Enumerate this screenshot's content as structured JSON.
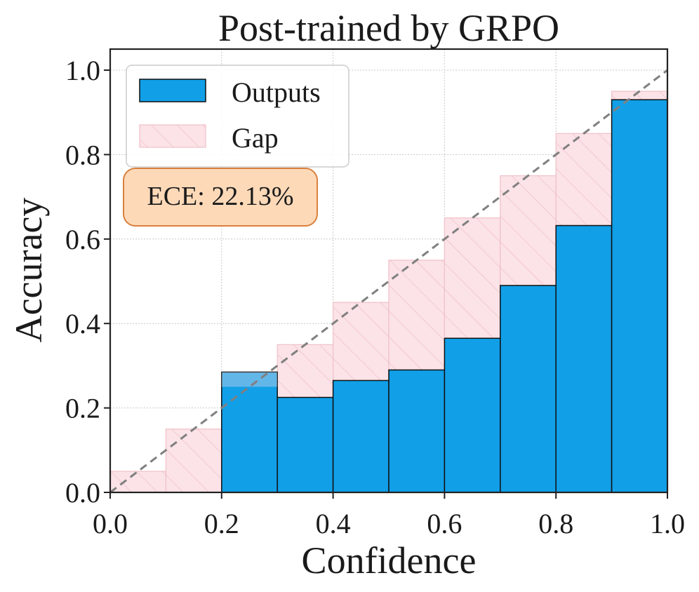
{
  "chart_data": {
    "type": "bar",
    "title": "Post-trained by GRPO",
    "xlabel": "Confidence",
    "ylabel": "Accuracy",
    "xlim": [
      0.0,
      1.0
    ],
    "ylim": [
      0.0,
      1.05
    ],
    "xticks": [
      "0.0",
      "0.2",
      "0.4",
      "0.6",
      "0.8",
      "1.0"
    ],
    "yticks": [
      "0.0",
      "0.2",
      "0.4",
      "0.6",
      "0.8",
      "1.0"
    ],
    "grid": true,
    "legend_position": "top-left",
    "annotation": "ECE: 22.13%",
    "bins": [
      {
        "x0": 0.0,
        "x1": 0.1,
        "expected": 0.05,
        "accuracy": 0.0
      },
      {
        "x0": 0.1,
        "x1": 0.2,
        "expected": 0.15,
        "accuracy": 0.0
      },
      {
        "x0": 0.2,
        "x1": 0.3,
        "expected": 0.25,
        "accuracy": 0.285
      },
      {
        "x0": 0.3,
        "x1": 0.4,
        "expected": 0.35,
        "accuracy": 0.225
      },
      {
        "x0": 0.4,
        "x1": 0.5,
        "expected": 0.45,
        "accuracy": 0.265
      },
      {
        "x0": 0.5,
        "x1": 0.6,
        "expected": 0.55,
        "accuracy": 0.29
      },
      {
        "x0": 0.6,
        "x1": 0.7,
        "expected": 0.65,
        "accuracy": 0.365
      },
      {
        "x0": 0.7,
        "x1": 0.8,
        "expected": 0.75,
        "accuracy": 0.49
      },
      {
        "x0": 0.8,
        "x1": 0.9,
        "expected": 0.85,
        "accuracy": 0.632
      },
      {
        "x0": 0.9,
        "x1": 1.0,
        "expected": 0.95,
        "accuracy": 0.93
      }
    ],
    "series": [
      {
        "name": "Outputs",
        "color": "#119fe8"
      },
      {
        "name": "Gap",
        "color": "#fbe3e7"
      }
    ],
    "diagonal": {
      "from": [
        0.0,
        0.0
      ],
      "to": [
        1.0,
        1.0
      ],
      "style": "dashed",
      "color": "#808080"
    },
    "annotation_colors": {
      "fill": "#fdd9b8",
      "stroke": "#d9803c"
    }
  }
}
